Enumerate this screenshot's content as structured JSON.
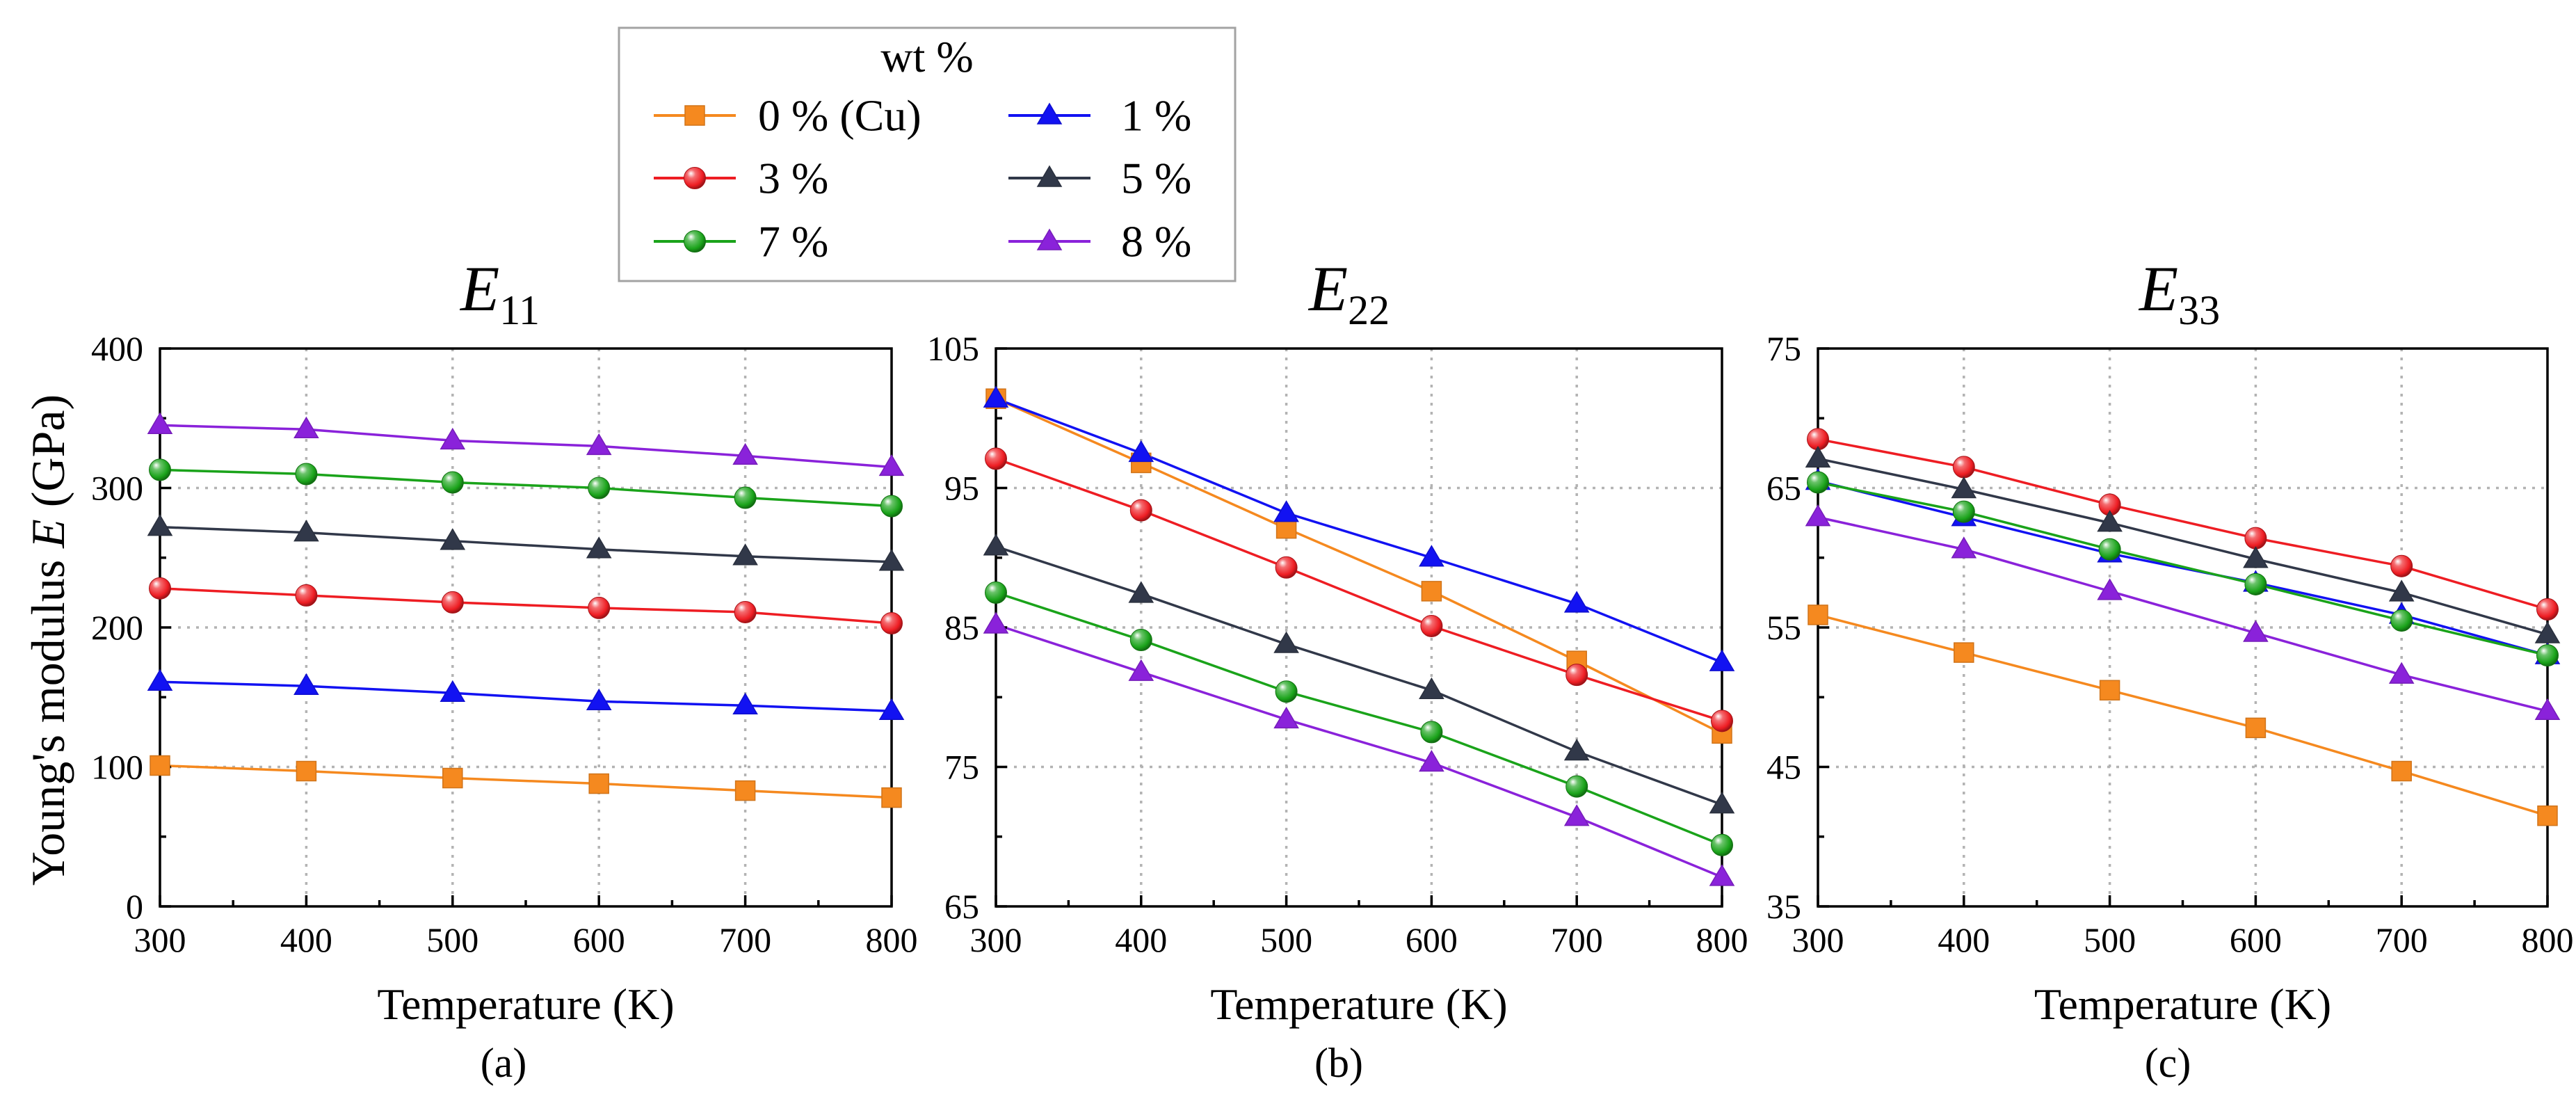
{
  "legend": {
    "title": "wt %",
    "entries": [
      {
        "label": "0 % (Cu)",
        "color": "#F5891F",
        "marker": "square"
      },
      {
        "label": "1 %",
        "color": "#1212F2",
        "marker": "triangle"
      },
      {
        "label": "3 %",
        "color": "#EE1D23",
        "marker": "sphere"
      },
      {
        "label": "5 %",
        "color": "#313849",
        "marker": "triangle"
      },
      {
        "label": "7 %",
        "color": "#1AA31A",
        "marker": "sphere"
      },
      {
        "label": "8 %",
        "color": "#8A22DA",
        "marker": "triangle"
      }
    ]
  },
  "chart_data": [
    {
      "type": "line",
      "panel_label": "(a)",
      "title": {
        "symbol": "E",
        "subscript": "11"
      },
      "xlabel": "Temperature (K)",
      "ylabel": {
        "text": "Young's modulus ",
        "symbol": "E",
        "unit": " (GPa)"
      },
      "x": [
        300,
        400,
        500,
        600,
        700,
        800
      ],
      "xlim": [
        300,
        800
      ],
      "ylim": [
        0,
        400
      ],
      "xticks": [
        300,
        400,
        500,
        600,
        700,
        800
      ],
      "yticks": [
        0,
        100,
        200,
        300,
        400
      ],
      "grid": true,
      "series": [
        {
          "legend_index": 0,
          "values": [
            101,
            97,
            92,
            88,
            83,
            78
          ]
        },
        {
          "legend_index": 1,
          "values": [
            161,
            158,
            153,
            147,
            144,
            140
          ]
        },
        {
          "legend_index": 2,
          "values": [
            228,
            223,
            218,
            214,
            211,
            203
          ]
        },
        {
          "legend_index": 3,
          "values": [
            272,
            268,
            262,
            256,
            251,
            247
          ]
        },
        {
          "legend_index": 4,
          "values": [
            313,
            310,
            304,
            300,
            293,
            287
          ]
        },
        {
          "legend_index": 5,
          "values": [
            345,
            342,
            334,
            330,
            323,
            315
          ]
        }
      ]
    },
    {
      "type": "line",
      "panel_label": "(b)",
      "title": {
        "symbol": "E",
        "subscript": "22"
      },
      "xlabel": "Temperature (K)",
      "x": [
        300,
        400,
        500,
        600,
        700,
        800
      ],
      "xlim": [
        300,
        800
      ],
      "ylim": [
        65,
        105
      ],
      "xticks": [
        300,
        400,
        500,
        600,
        700,
        800
      ],
      "yticks": [
        65,
        75,
        85,
        95,
        105
      ],
      "grid": true,
      "series": [
        {
          "legend_index": 0,
          "values": [
            101.4,
            96.8,
            92.1,
            87.6,
            82.6,
            77.4
          ]
        },
        {
          "legend_index": 1,
          "values": [
            101.4,
            97.5,
            93.2,
            90.0,
            86.7,
            82.5
          ]
        },
        {
          "legend_index": 2,
          "values": [
            97.1,
            93.4,
            89.3,
            85.1,
            81.6,
            78.3
          ]
        },
        {
          "legend_index": 3,
          "values": [
            90.8,
            87.4,
            83.8,
            80.5,
            76.1,
            72.3
          ]
        },
        {
          "legend_index": 4,
          "values": [
            87.5,
            84.1,
            80.4,
            77.5,
            73.6,
            69.4
          ]
        },
        {
          "legend_index": 5,
          "values": [
            85.2,
            81.8,
            78.4,
            75.3,
            71.4,
            67.1
          ]
        }
      ]
    },
    {
      "type": "line",
      "panel_label": "(c)",
      "title": {
        "symbol": "E",
        "subscript": "33"
      },
      "xlabel": "Temperature (K)",
      "x": [
        300,
        400,
        500,
        600,
        700,
        800
      ],
      "xlim": [
        300,
        800
      ],
      "ylim": [
        35,
        75
      ],
      "xticks": [
        300,
        400,
        500,
        600,
        700,
        800
      ],
      "yticks": [
        35,
        45,
        55,
        65,
        75
      ],
      "grid": true,
      "series": [
        {
          "legend_index": 0,
          "values": [
            55.9,
            53.2,
            50.5,
            47.8,
            44.7,
            41.5
          ]
        },
        {
          "legend_index": 1,
          "values": [
            65.5,
            62.9,
            60.3,
            58.2,
            55.9,
            53.0
          ]
        },
        {
          "legend_index": 2,
          "values": [
            68.5,
            66.5,
            63.8,
            61.4,
            59.4,
            56.3
          ]
        },
        {
          "legend_index": 3,
          "values": [
            67.1,
            64.9,
            62.5,
            59.9,
            57.5,
            54.5
          ]
        },
        {
          "legend_index": 4,
          "values": [
            65.4,
            63.3,
            60.6,
            58.1,
            55.5,
            53.0
          ]
        },
        {
          "legend_index": 5,
          "values": [
            62.9,
            60.6,
            57.6,
            54.6,
            51.6,
            49.0
          ]
        }
      ]
    }
  ]
}
